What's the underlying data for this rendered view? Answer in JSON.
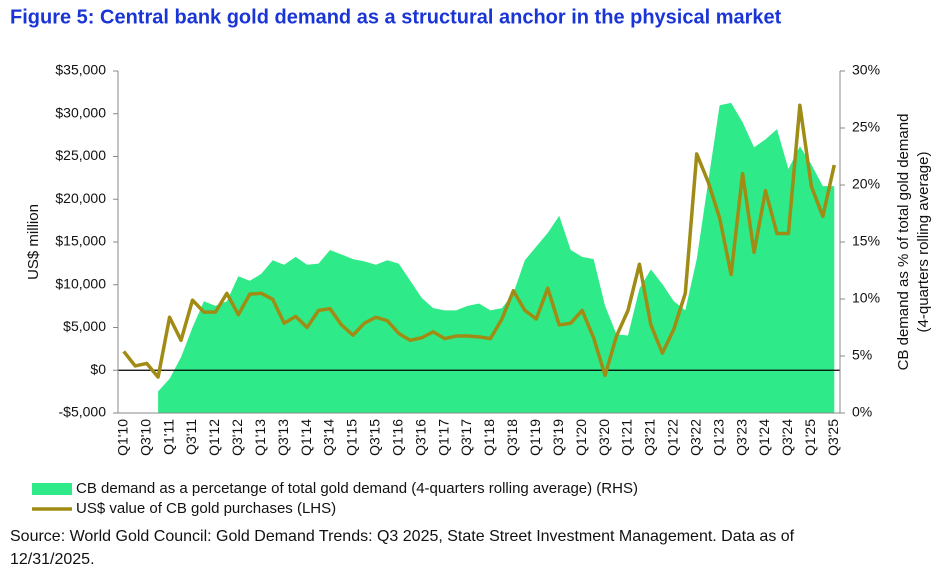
{
  "chart_data": {
    "type": "area-line",
    "title": "Figure 5: Central bank gold demand as a structural anchor in the physical market",
    "ylabel": "US$ million",
    "y2label": [
      "CB demand as % of total gold demand",
      "(4-quarters rolling average)"
    ],
    "categories": [
      "Q1'10",
      null,
      "Q3'10",
      null,
      "Q1'11",
      null,
      "Q3'11",
      null,
      "Q1'12",
      null,
      "Q3'12",
      null,
      "Q1'13",
      null,
      "Q3'13",
      null,
      "Q1'14",
      null,
      "Q3'14",
      null,
      "Q1'15",
      null,
      "Q3'15",
      null,
      "Q1'16",
      null,
      "Q3'16",
      null,
      "Q1'17",
      null,
      "Q3'17",
      null,
      "Q1'18",
      null,
      "Q3'18",
      null,
      "Q1'19",
      null,
      "Q3'19",
      null,
      "Q1'20",
      null,
      "Q3'20",
      null,
      "Q1'21",
      null,
      "Q3'21",
      null,
      "Q1'22",
      null,
      "Q3'22",
      null,
      "Q1'23",
      null,
      "Q3'23",
      null,
      "Q1'24",
      null,
      "Q3'24",
      null,
      "Q1'25",
      null,
      "Q3'25"
    ],
    "series": [
      {
        "name": "CB demand as a percetange of total gold demand (4-quarters rolling average) (RHS)",
        "color": "#2fea88",
        "kind": "area",
        "axis": "y2",
        "values": [
          null,
          null,
          null,
          1.9,
          3.0,
          4.9,
          7.5,
          9.8,
          9.4,
          9.8,
          12.0,
          11.6,
          12.2,
          13.4,
          13.0,
          13.7,
          13.0,
          13.1,
          14.3,
          13.9,
          13.5,
          13.3,
          13.0,
          13.4,
          13.1,
          11.6,
          10.1,
          9.2,
          9.0,
          9.0,
          9.4,
          9.6,
          9.0,
          9.2,
          10.5,
          13.4,
          14.6,
          15.8,
          17.3,
          14.3,
          13.7,
          13.5,
          9.4,
          6.9,
          6.8,
          10.9,
          12.6,
          11.3,
          9.8,
          9.0,
          13.5,
          20.3,
          27.0,
          27.2,
          25.5,
          23.3,
          24.0,
          24.9,
          21.4,
          23.4,
          21.8,
          19.9,
          19.9
        ]
      },
      {
        "name": "US$ value of CB gold purchases (LHS)",
        "color": "#a08c14",
        "kind": "line",
        "values": [
          2200,
          500,
          800,
          -800,
          6200,
          3500,
          8200,
          6800,
          6800,
          9000,
          6500,
          8900,
          9000,
          8300,
          5500,
          6300,
          5000,
          7000,
          7200,
          5300,
          4100,
          5500,
          6200,
          5800,
          4300,
          3500,
          3800,
          4500,
          3700,
          4000,
          4000,
          3900,
          3700,
          6000,
          9300,
          7000,
          6000,
          9600,
          5300,
          5500,
          7000,
          3800,
          -600,
          4000,
          7000,
          12400,
          5300,
          2000,
          4800,
          9000,
          25300,
          22000,
          17800,
          11200,
          23000,
          13800,
          21000,
          16000,
          16000,
          31000,
          21500,
          18000,
          24000
        ]
      }
    ],
    "ylim": [
      -5000,
      35000
    ],
    "yticks": [
      {
        "value": -5000,
        "label": "-$5,000"
      },
      {
        "value": 0,
        "label": "$0"
      },
      {
        "value": 5000,
        "label": "$5,000"
      },
      {
        "value": 10000,
        "label": "$10,000"
      },
      {
        "value": 15000,
        "label": "$15,000"
      },
      {
        "value": 20000,
        "label": "$20,000"
      },
      {
        "value": 25000,
        "label": "$25,000"
      },
      {
        "value": 30000,
        "label": "$30,000"
      },
      {
        "value": 35000,
        "label": "$35,000"
      }
    ],
    "y2lim": [
      0,
      30
    ],
    "y2ticks": [
      {
        "value": 0,
        "label": "0%"
      },
      {
        "value": 5,
        "label": "5%"
      },
      {
        "value": 10,
        "label": "10%"
      },
      {
        "value": 15,
        "label": "15%"
      },
      {
        "value": 20,
        "label": "20%"
      },
      {
        "value": 25,
        "label": "25%"
      },
      {
        "value": 30,
        "label": "30%"
      }
    ],
    "grid": false,
    "legend": "bottom",
    "source": "Source: World Gold Council: Gold Demand Trends: Q3 2025, State Street Investment Management. Data as of 12/31/2025."
  }
}
